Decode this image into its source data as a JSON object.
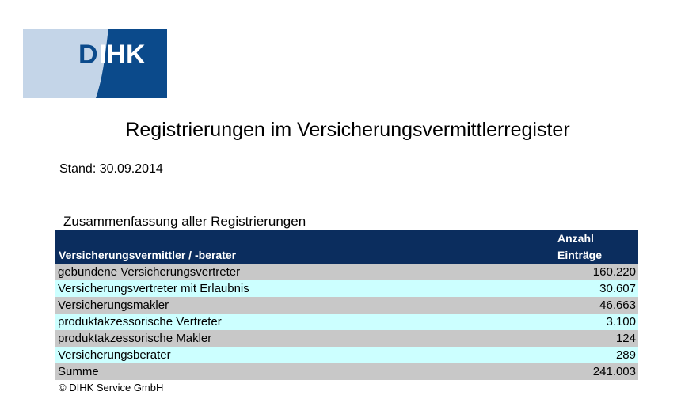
{
  "logo": {
    "text": "DIHK",
    "colors": {
      "light_blue": "#c4d5e8",
      "dark_blue": "#0b4a8b",
      "text_blue": "#0b4a8b",
      "text_white": "#ffffff"
    }
  },
  "title": "Registrierungen im Versicherungsvermittlerregister",
  "stand": "Stand: 30.09.2014",
  "section_title": "Zusammenfassung aller Registrierungen",
  "table": {
    "header": {
      "col1": "Versicherungsvermittler / -berater",
      "col2_line1": "Anzahl",
      "col2_line2": "Einträge"
    },
    "rows": [
      {
        "label": "gebundene Versicherungsvertreter",
        "value": "160.220"
      },
      {
        "label": "Versicherungsvertreter mit Erlaubnis",
        "value": "30.607"
      },
      {
        "label": "Versicherungsmakler",
        "value": "46.663"
      },
      {
        "label": "produktakzessorische Vertreter",
        "value": "3.100"
      },
      {
        "label": "produktakzessorische Makler",
        "value": "124"
      },
      {
        "label": "Versicherungsberater",
        "value": "289"
      },
      {
        "label": "Summe",
        "value": "241.003"
      }
    ],
    "colors": {
      "header_bg": "#0b2d5e",
      "row_grey": "#c8c8c8",
      "row_cyan": "#ccffff"
    }
  },
  "footer": "© DIHK Service GmbH"
}
